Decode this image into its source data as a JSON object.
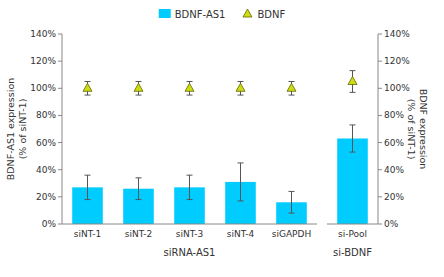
{
  "chart_data": [
    {
      "type": "bar",
      "x_label": "siRNA-AS1",
      "y_label": "BDNF-AS1 expression\n(% of siNT-1)",
      "categories": [
        "siNT-1",
        "siNT-2",
        "siNT-3",
        "siNT-4",
        "siGAPDH"
      ],
      "series": [
        {
          "name": "BDNF-AS1",
          "type": "bar",
          "color": "#00CCFF",
          "values": [
            27,
            26,
            27,
            31,
            16
          ],
          "errors": [
            9,
            8,
            9,
            14,
            8
          ]
        },
        {
          "name": "BDNF",
          "type": "scatter",
          "marker": "triangle",
          "color": "#CCDD11",
          "values": [
            100,
            100,
            100,
            100,
            100
          ],
          "errors_up": [
            5,
            5,
            5,
            5,
            5
          ],
          "errors_down": [
            5,
            5,
            5,
            5,
            5
          ]
        }
      ],
      "ylim": [
        0,
        140
      ],
      "yticks": [
        {
          "value": 0,
          "label": "0%"
        },
        {
          "value": 20,
          "label": "20%"
        },
        {
          "value": 40,
          "label": "40%"
        },
        {
          "value": 60,
          "label": "60%"
        },
        {
          "value": 80,
          "label": "80%"
        },
        {
          "value": 100,
          "label": "100%"
        },
        {
          "value": 120,
          "label": "120%"
        },
        {
          "value": 140,
          "label": "140%"
        }
      ],
      "grid": false,
      "legend": "top"
    },
    {
      "type": "bar",
      "x_label": "si-BDNF",
      "y_label": "BDNF expression\n(% of siNT-1)",
      "categories": [
        "si-Pool"
      ],
      "series": [
        {
          "name": "BDNF-AS1",
          "type": "bar",
          "color": "#00CCFF",
          "values": [
            63
          ],
          "errors": [
            10
          ]
        },
        {
          "name": "BDNF",
          "type": "scatter",
          "marker": "triangle",
          "color": "#CCDD11",
          "values": [
            105
          ],
          "errors_up": [
            8
          ],
          "errors_down": [
            8
          ]
        }
      ],
      "ylim": [
        0,
        140
      ],
      "yticks": [
        {
          "value": 0,
          "label": "0%"
        },
        {
          "value": 20,
          "label": "20%"
        },
        {
          "value": 40,
          "label": "40%"
        },
        {
          "value": 60,
          "label": "60%"
        },
        {
          "value": 80,
          "label": "80%"
        },
        {
          "value": 100,
          "label": "100%"
        },
        {
          "value": 120,
          "label": "120%"
        },
        {
          "value": 140,
          "label": "140%"
        }
      ],
      "grid": false
    }
  ]
}
